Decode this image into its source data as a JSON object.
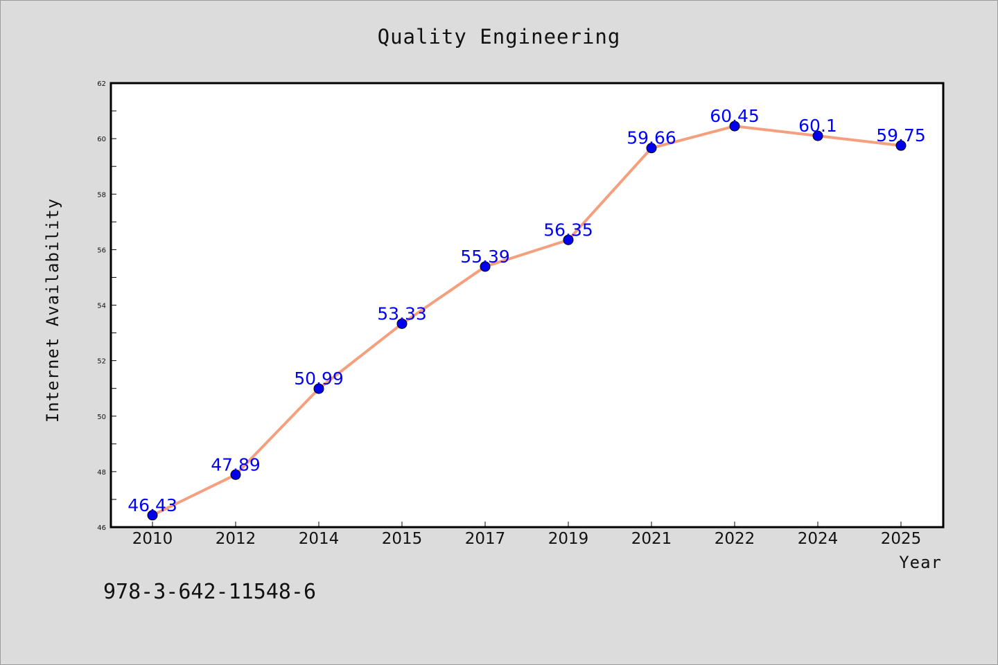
{
  "chart_data": {
    "type": "line",
    "title": "Quality Engineering",
    "xlabel": "Year",
    "ylabel": "Internet Availability",
    "categories": [
      "2010",
      "2012",
      "2014",
      "2015",
      "2017",
      "2019",
      "2021",
      "2022",
      "2024",
      "2025"
    ],
    "series": [
      {
        "values": [
          46.43,
          47.89,
          50.99,
          53.33,
          55.39,
          56.35,
          59.66,
          60.45,
          60.1,
          59.75
        ],
        "data_labels": [
          "46.43",
          "47.89",
          "50.99",
          "53.33",
          "55.39",
          "56.35",
          "59.66",
          "60.45",
          "60.1",
          "59.75"
        ]
      }
    ],
    "ylim": [
      46,
      62
    ],
    "y_ticks": [
      46,
      48,
      50,
      52,
      54,
      56,
      58,
      60,
      62
    ],
    "grid": false,
    "legend": "none",
    "colors": {
      "line": "#f4a07e",
      "marker": "#0000ee",
      "data_label": "#0000ff",
      "background": "#dcdcdc",
      "plot_background": "#ffffff"
    }
  },
  "footer": {
    "caption": "978-3-642-11548-6"
  }
}
